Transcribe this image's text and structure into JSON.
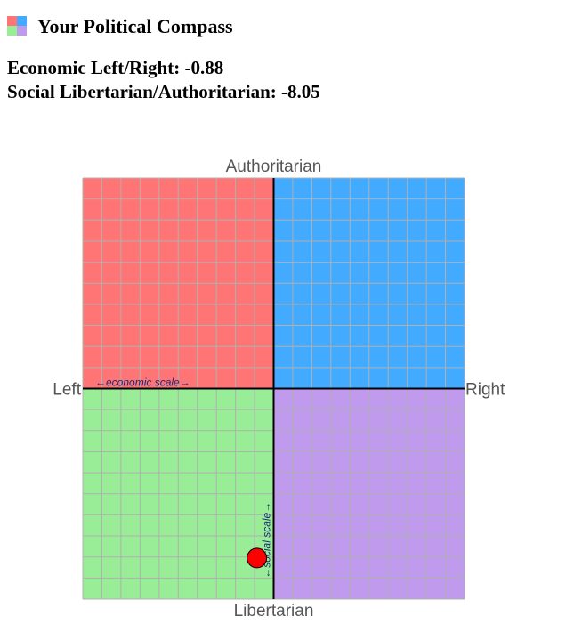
{
  "chart_data": {
    "type": "scatter",
    "title": "Your Political Compass",
    "x_label": "Economic Left/Right:",
    "y_label": "Social Libertarian/Authoritarian:",
    "x": [
      -0.88
    ],
    "y": [
      -8.05
    ],
    "point_color": "#ff0000",
    "xlim": [
      -10,
      10
    ],
    "ylim": [
      -10,
      10
    ],
    "xticks": [
      -10,
      -9,
      -8,
      -7,
      -6,
      -5,
      -4,
      -3,
      -2,
      -1,
      0,
      1,
      2,
      3,
      4,
      5,
      6,
      7,
      8,
      9,
      10
    ],
    "yticks": [
      -10,
      -9,
      -8,
      -7,
      -6,
      -5,
      -4,
      -3,
      -2,
      -1,
      0,
      1,
      2,
      3,
      4,
      5,
      6,
      7,
      8,
      9,
      10
    ],
    "grid": true,
    "quadrant_colors": {
      "top_left": "#ff7575",
      "top_right": "#42aaff",
      "bottom_left": "#9aed97",
      "bottom_right": "#c09aec"
    },
    "axis_ends": {
      "top": "Authoritarian",
      "bottom": "Libertarian",
      "left": "Left",
      "right": "Right"
    },
    "annotations": [
      "←economic scale→",
      "←social scale→"
    ]
  }
}
